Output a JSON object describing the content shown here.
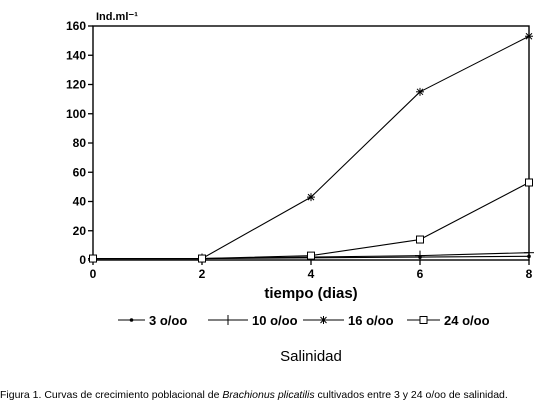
{
  "chart_data": {
    "type": "line",
    "y_unit_label": "Ind.ml⁻¹",
    "xlabel": "tiempo (dias)",
    "legend_title": "Salinidad",
    "legend_placement": "bottom",
    "x": [
      0,
      2,
      4,
      6,
      8
    ],
    "xticks": [
      "0",
      "2",
      "4",
      "6",
      "8"
    ],
    "xlim": [
      0,
      8
    ],
    "ylim": [
      0,
      160
    ],
    "yticks": [
      "0",
      "20",
      "40",
      "60",
      "80",
      "100",
      "120",
      "140",
      "160"
    ],
    "grid": false,
    "series": [
      {
        "name": "3 o/oo",
        "marker": "dot",
        "values": [
          1,
          1,
          1.5,
          2,
          2.5
        ]
      },
      {
        "name": "10 o/oo",
        "marker": "plus",
        "values": [
          1,
          1,
          2,
          3,
          5
        ]
      },
      {
        "name": "16 o/oo",
        "marker": "asterisk",
        "values": [
          1,
          1,
          43,
          115,
          153
        ]
      },
      {
        "name": "24 o/oo",
        "marker": "square",
        "values": [
          1,
          1,
          3,
          14,
          53
        ]
      }
    ]
  },
  "caption": {
    "prefix": "Figura 1. Curvas de crecimiento poblacional de ",
    "species": "Brachionus plicatilis",
    "suffix": " cultivados entre 3 y 24 o/oo de salinidad."
  }
}
